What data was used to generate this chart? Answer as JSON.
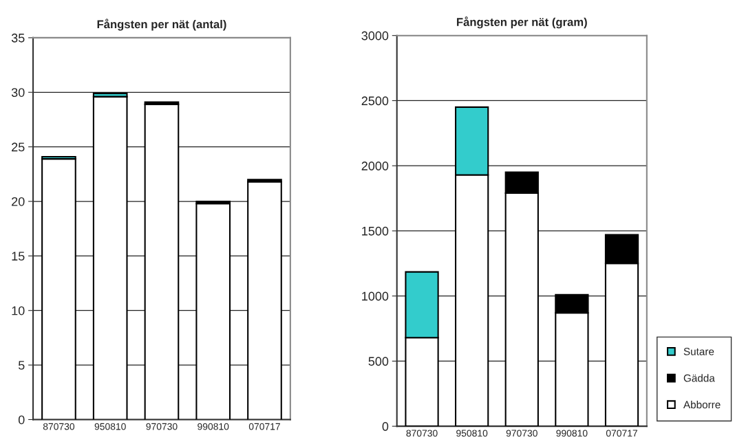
{
  "chart_data": [
    {
      "type": "bar",
      "title": "Fångsten per nät (antal)",
      "categories": [
        "870730",
        "950810",
        "970730",
        "990810",
        "070717"
      ],
      "stacked": true,
      "ylim": [
        0,
        35
      ],
      "yticks": [
        0,
        5,
        10,
        15,
        20,
        25,
        30,
        35
      ],
      "grid": "y",
      "legend": false,
      "series": [
        {
          "color": "#ffffff",
          "values": [
            23.9,
            29.6,
            28.9,
            19.8,
            21.8
          ]
        },
        {
          "color": "#000000",
          "values": [
            null,
            null,
            0.2,
            0.2,
            0.2
          ]
        },
        {
          "color": "#33cccc",
          "values": [
            0.2,
            0.3,
            null,
            null,
            null
          ]
        }
      ]
    },
    {
      "type": "bar",
      "title": "Fångsten per nät (gram)",
      "categories": [
        "870730",
        "950810",
        "970730",
        "990810",
        "070717"
      ],
      "stacked": true,
      "ylim": [
        0,
        3000
      ],
      "yticks": [
        0,
        500,
        1000,
        1500,
        2000,
        2500,
        3000
      ],
      "grid": "y",
      "legend": "right",
      "series": [
        {
          "name": "Abborre",
          "color": "#ffffff",
          "values": [
            680,
            1930,
            1790,
            870,
            1250
          ]
        },
        {
          "name": "Gädda",
          "color": "#000000",
          "values": [
            null,
            null,
            160,
            140,
            220
          ]
        },
        {
          "name": "Sutare",
          "color": "#33cccc",
          "values": [
            505,
            520,
            null,
            null,
            null
          ]
        }
      ]
    }
  ]
}
